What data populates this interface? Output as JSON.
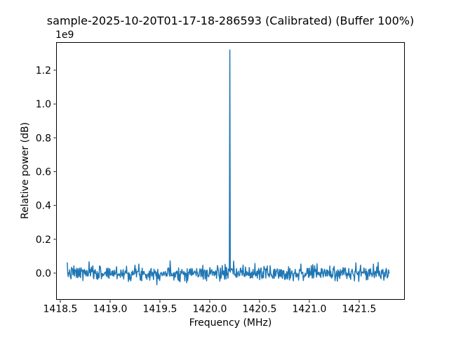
{
  "chart_data": {
    "type": "line",
    "title": "sample-2025-10-20T01-17-18-286593 (Calibrated) (Buffer 100%)",
    "xlabel": "Frequency (MHz)",
    "ylabel": "Relative power (dB)",
    "y_offset_label": "1e9",
    "line_color": "#1f77b4",
    "line_width": 1.5,
    "grid": false,
    "legend": "none",
    "x_start": 1418.57,
    "x_end": 1421.8,
    "n_points": 680,
    "baseline": 0.0,
    "noise_std": 0.022,
    "noise_clip": [
      -0.09,
      0.075
    ],
    "noise_seed": 7,
    "peak": {
      "frequency": 1420.2,
      "amplitude": 1.32,
      "sigma": 0.0012
    },
    "xlim": [
      1418.458,
      1421.958
    ],
    "ylim": [
      -0.158,
      1.366
    ],
    "xticks": [
      1418.5,
      1419.0,
      1419.5,
      1420.0,
      1420.5,
      1421.0,
      1421.5
    ],
    "xtick_labels": [
      "1418.5",
      "1419.0",
      "1419.5",
      "1420.0",
      "1420.5",
      "1421.0",
      "1421.5"
    ],
    "yticks": [
      0.0,
      0.2,
      0.4,
      0.6,
      0.8,
      1.0,
      1.2
    ],
    "ytick_labels": [
      "0.0",
      "0.2",
      "0.4",
      "0.6",
      "0.8",
      "1.0",
      "1.2"
    ],
    "value_units": "1e9 relative power (dB-scaled counts)"
  }
}
